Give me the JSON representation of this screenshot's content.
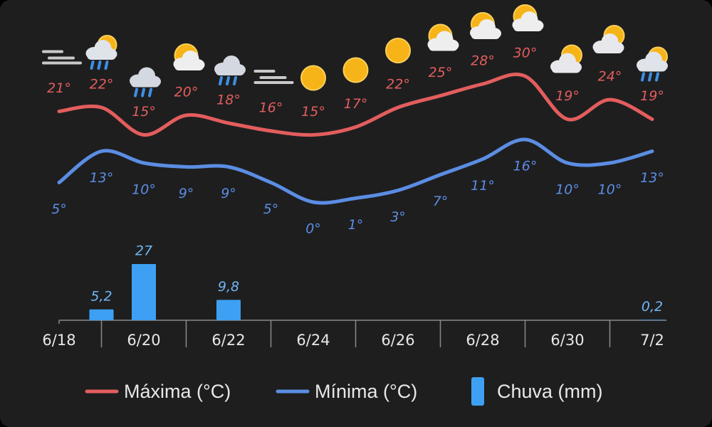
{
  "chart_data": {
    "type": "line",
    "categories": [
      "6/18",
      null,
      "6/20",
      null,
      "6/22",
      null,
      "6/24",
      null,
      "6/26",
      null,
      "6/28",
      null,
      "6/30",
      null,
      "7/2"
    ],
    "series": [
      {
        "name": "Máxima (°C)",
        "type": "line",
        "color": "#e35d5d",
        "values": [
          21,
          22,
          15,
          20,
          18,
          16,
          15,
          17,
          22,
          25,
          28,
          30,
          19,
          24,
          19
        ],
        "value_labels": [
          "21°",
          "22°",
          "15°",
          "20°",
          "18°",
          "16°",
          "15°",
          "17°",
          "22°",
          "25°",
          "28°",
          "30°",
          "19°",
          "24°",
          "19°"
        ]
      },
      {
        "name": "Mínima (°C)",
        "type": "line",
        "color": "#5b8de3",
        "values": [
          5,
          13,
          10,
          9,
          9,
          5,
          0,
          1,
          3,
          7,
          11,
          16,
          10,
          10,
          13
        ],
        "value_labels": [
          "5°",
          "13°",
          "10°",
          "9°",
          "9°",
          "5°",
          "0°",
          "1°",
          "3°",
          "7°",
          "11°",
          "16°",
          "10°",
          "10°",
          "13°"
        ]
      },
      {
        "name": "Chuva (mm)",
        "type": "bar",
        "color": "#3ea0f2",
        "values": [
          null,
          5.2,
          27,
          null,
          9.8,
          null,
          null,
          null,
          null,
          null,
          null,
          null,
          null,
          null,
          0.2
        ],
        "value_labels": [
          null,
          "5,2",
          "27",
          null,
          "9,8",
          null,
          null,
          null,
          null,
          null,
          null,
          null,
          null,
          null,
          "0,2"
        ]
      }
    ],
    "legend": "bottom"
  }
}
